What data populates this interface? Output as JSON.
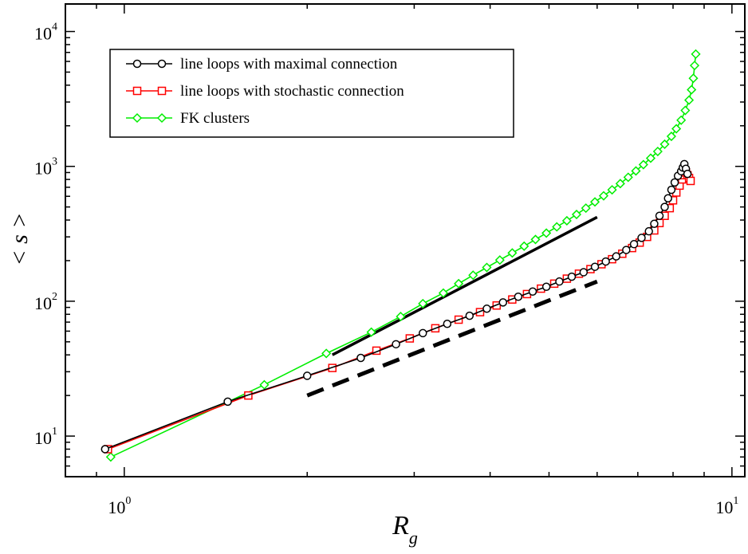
{
  "chart_data": {
    "type": "scatter",
    "title": "",
    "xlabel": "R",
    "xlabel_sub": "g",
    "ylabel": "< s >",
    "xscale": "log",
    "yscale": "log",
    "xlim": [
      0.8,
      10.5
    ],
    "ylim": [
      5.0,
      16000
    ],
    "grid": false,
    "legend_position": "top-left",
    "x_ticks": [
      {
        "value": 1,
        "base": "10",
        "exp": "0"
      },
      {
        "value": 10,
        "base": "10",
        "exp": "1"
      }
    ],
    "y_ticks": [
      {
        "value": 10,
        "base": "10",
        "exp": "1"
      },
      {
        "value": 100,
        "base": "10",
        "exp": "2"
      },
      {
        "value": 1000,
        "base": "10",
        "exp": "3"
      },
      {
        "value": 10000,
        "base": "10",
        "exp": "4"
      }
    ],
    "series": [
      {
        "name": "line loops with maximal connection",
        "color": "#000000",
        "marker": "circle",
        "x": [
          0.93,
          1.48,
          2.0,
          2.45,
          2.8,
          3.1,
          3.4,
          3.7,
          3.95,
          4.2,
          4.45,
          4.7,
          4.95,
          5.2,
          5.45,
          5.7,
          5.95,
          6.2,
          6.45,
          6.7,
          6.9,
          7.1,
          7.3,
          7.45,
          7.6,
          7.75,
          7.85,
          7.95,
          8.05,
          8.15,
          8.25,
          8.3,
          8.35,
          8.4,
          8.45
        ],
        "y": [
          8.0,
          18.0,
          28.0,
          38.0,
          48.0,
          58.0,
          68.0,
          78.0,
          88.0,
          98.0,
          108.0,
          118.0,
          128.0,
          140.0,
          152.0,
          164.0,
          180.0,
          197.0,
          215.0,
          240.0,
          265.0,
          295.0,
          330.0,
          375.0,
          430.0,
          500.0,
          580.0,
          670.0,
          760.0,
          850.0,
          920.0,
          980.0,
          1040.0,
          960.0,
          880.0
        ]
      },
      {
        "name": "line loops with stochastic connection",
        "color": "#ff0000",
        "marker": "square",
        "x": [
          0.94,
          1.6,
          2.2,
          2.6,
          2.95,
          3.25,
          3.55,
          3.85,
          4.1,
          4.35,
          4.6,
          4.85,
          5.1,
          5.35,
          5.6,
          5.85,
          6.1,
          6.35,
          6.6,
          6.85,
          7.05,
          7.25,
          7.45,
          7.6,
          7.75,
          7.9,
          8.0,
          8.1,
          8.2,
          8.28,
          8.34,
          8.4,
          8.45,
          8.5,
          8.55
        ],
        "y": [
          8.0,
          20.0,
          32.0,
          43.0,
          53.0,
          63.0,
          73.0,
          83.0,
          93.0,
          103.0,
          113.0,
          124.0,
          135.0,
          147.0,
          160.0,
          173.0,
          188.0,
          205.0,
          225.0,
          248.0,
          272.0,
          300.0,
          335.0,
          380.0,
          430.0,
          490.0,
          560.0,
          640.0,
          720.0,
          800.0,
          860.0,
          900.0,
          860.0,
          820.0,
          780.0
        ]
      },
      {
        "name": "FK clusters",
        "color": "#00ee00",
        "marker": "diamond",
        "x": [
          0.95,
          1.7,
          2.15,
          2.55,
          2.85,
          3.1,
          3.35,
          3.55,
          3.75,
          3.95,
          4.15,
          4.35,
          4.55,
          4.75,
          4.95,
          5.15,
          5.35,
          5.55,
          5.75,
          5.95,
          6.15,
          6.35,
          6.55,
          6.75,
          6.95,
          7.15,
          7.35,
          7.55,
          7.75,
          7.95,
          8.1,
          8.25,
          8.38,
          8.5,
          8.58,
          8.64,
          8.68,
          8.72
        ],
        "y": [
          7.0,
          24.0,
          41.0,
          59.0,
          77.0,
          96.0,
          115.0,
          135.0,
          156.0,
          178.0,
          202.0,
          228.0,
          256.0,
          287.0,
          320.0,
          356.0,
          395.0,
          440.0,
          490.0,
          545.0,
          605.0,
          670.0,
          745.0,
          830.0,
          925.0,
          1030.0,
          1150.0,
          1290.0,
          1460.0,
          1670.0,
          1900.0,
          2200.0,
          2600.0,
          3100.0,
          3700.0,
          4500.0,
          5600.0,
          6800.0
        ]
      }
    ],
    "reference_lines": [
      {
        "style": "solid",
        "color": "#000000",
        "x": [
          2.2,
          6.0
        ],
        "y": [
          40.0,
          420.0
        ]
      },
      {
        "style": "dashed",
        "color": "#000000",
        "x": [
          2.0,
          6.0
        ],
        "y": [
          20.0,
          140.0
        ]
      }
    ]
  }
}
